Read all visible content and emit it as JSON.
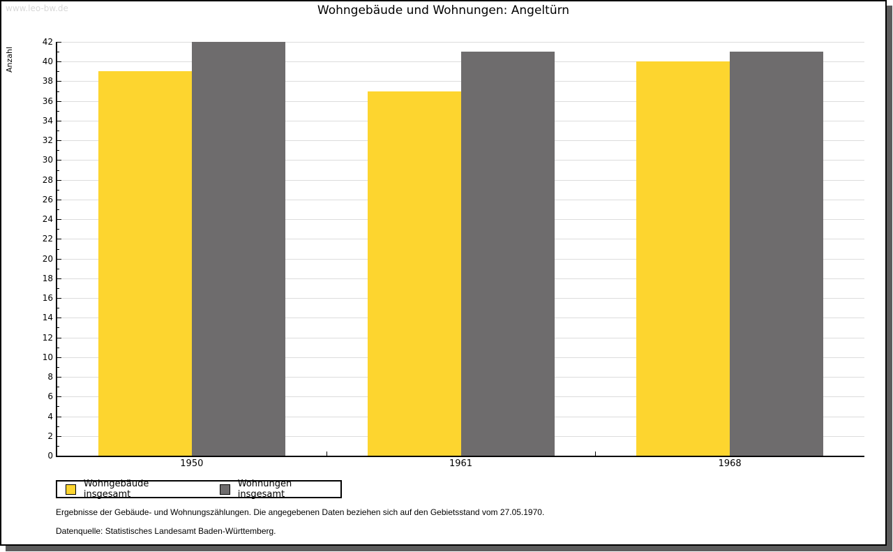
{
  "watermark": "www.leo-bw.de",
  "title": "Wohngebäude und Wohnungen: Angeltürn",
  "footnotes": [
    "Ergebnisse der Gebäude- und Wohnungszählungen. Die angegebenen Daten beziehen sich auf den Gebietsstand vom 27.05.1970.",
    "Datenquelle: Statistisches Landesamt Baden-Württemberg."
  ],
  "colors": {
    "bar_yellow": "#fdd52f",
    "bar_gray": "#6e6c6d",
    "gridline": "#dcdcdc",
    "axis": "#000000",
    "watermark_gray": "#d8d8d8",
    "page_shadow": "#5c5c5c"
  },
  "chart_data": {
    "type": "bar",
    "title": "Wohngebäude und Wohnungen: Angeltürn",
    "categories": [
      "1950",
      "1961",
      "1968"
    ],
    "series": [
      {
        "name": "Wohngebäude insgesamt",
        "color": "#fdd52f",
        "values": [
          39,
          37,
          40
        ]
      },
      {
        "name": "Wohnungen insgesamt",
        "color": "#6e6c6d",
        "values": [
          42,
          41,
          41
        ]
      }
    ],
    "xlabel": "",
    "ylabel": "Anzahl",
    "ylim": [
      0,
      42
    ],
    "ytick_step": 2,
    "yminor_step": 1,
    "grid": "horizontal",
    "legend_position": "bottom-left"
  }
}
